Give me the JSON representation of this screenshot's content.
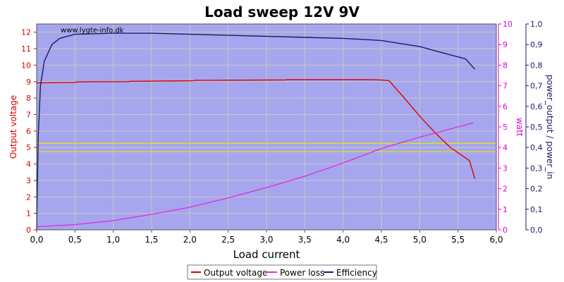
{
  "chart_data": {
    "type": "line",
    "title": "Load sweep 12V 9V",
    "watermark": "www.lygte-info.dk",
    "xlabel": "Load current",
    "ylabel_left": "Output voltage",
    "ylabel_right1": "watt",
    "ylabel_right2": "power_output / power_in",
    "xlim": [
      0,
      6
    ],
    "ylim_left": [
      0,
      12.5
    ],
    "ylim_right1": [
      0,
      10
    ],
    "ylim_right2": [
      0,
      1
    ],
    "x_ticks": [
      "0,0",
      "0,5",
      "1,0",
      "1,5",
      "2,0",
      "2,5",
      "3,0",
      "3,5",
      "4,0",
      "4,5",
      "5,0",
      "5,5",
      "6,0"
    ],
    "y_left_ticks": [
      "0",
      "1",
      "2",
      "3",
      "4",
      "5",
      "6",
      "7",
      "8",
      "9",
      "10",
      "11",
      "12"
    ],
    "y_right1_ticks": [
      "0",
      "1",
      "2",
      "3",
      "4",
      "5",
      "6",
      "7",
      "8",
      "9",
      "10"
    ],
    "y_right2_ticks": [
      "0,0",
      "0,1",
      "0,2",
      "0,3",
      "0,4",
      "0,5",
      "0,6",
      "0,7",
      "0,8",
      "0,9",
      "1,0"
    ],
    "reference_lines_left_axis": [
      5.25,
      4.75
    ],
    "grid": true,
    "legend_position": "bottom",
    "colors": {
      "plot_background": "#a6a6ee",
      "grid": "#c6c6c6",
      "output_voltage": "#dd0000",
      "power_loss": "#dd33dd",
      "efficiency": "#1a1a66",
      "reference_lines": "#e6e600",
      "left_axis": "#dd0000",
      "right1_axis": "#dd00dd",
      "right2_axis": "#1a1a66"
    },
    "series": [
      {
        "name": "Output voltage",
        "axis": "left",
        "x": [
          0.0,
          0.5,
          0.52,
          1.2,
          1.22,
          2.05,
          2.07,
          3.25,
          3.27,
          4.3,
          4.5,
          4.6,
          4.8,
          5.0,
          5.2,
          5.4,
          5.65,
          5.72
        ],
        "y": [
          8.92,
          8.95,
          8.98,
          9.0,
          9.02,
          9.05,
          9.08,
          9.1,
          9.12,
          9.12,
          9.1,
          9.05,
          8.0,
          6.9,
          5.9,
          5.0,
          4.2,
          3.1
        ]
      },
      {
        "name": "Power loss",
        "axis": "right1",
        "x": [
          0.0,
          0.5,
          1.0,
          1.5,
          2.0,
          2.5,
          3.0,
          3.5,
          4.0,
          4.5,
          5.0,
          5.5,
          5.7
        ],
        "y": [
          0.15,
          0.25,
          0.45,
          0.75,
          1.1,
          1.55,
          2.05,
          2.6,
          3.25,
          3.95,
          4.5,
          5.0,
          5.2
        ]
      },
      {
        "name": "Efficiency",
        "axis": "right2",
        "x": [
          0.0,
          0.02,
          0.05,
          0.1,
          0.2,
          0.3,
          0.5,
          1.0,
          1.5,
          2.0,
          2.5,
          3.0,
          3.5,
          4.0,
          4.5,
          5.0,
          5.3,
          5.6,
          5.72
        ],
        "y": [
          0.0,
          0.45,
          0.7,
          0.82,
          0.9,
          0.93,
          0.95,
          0.955,
          0.955,
          0.95,
          0.945,
          0.94,
          0.935,
          0.93,
          0.92,
          0.89,
          0.86,
          0.83,
          0.78
        ]
      }
    ]
  }
}
